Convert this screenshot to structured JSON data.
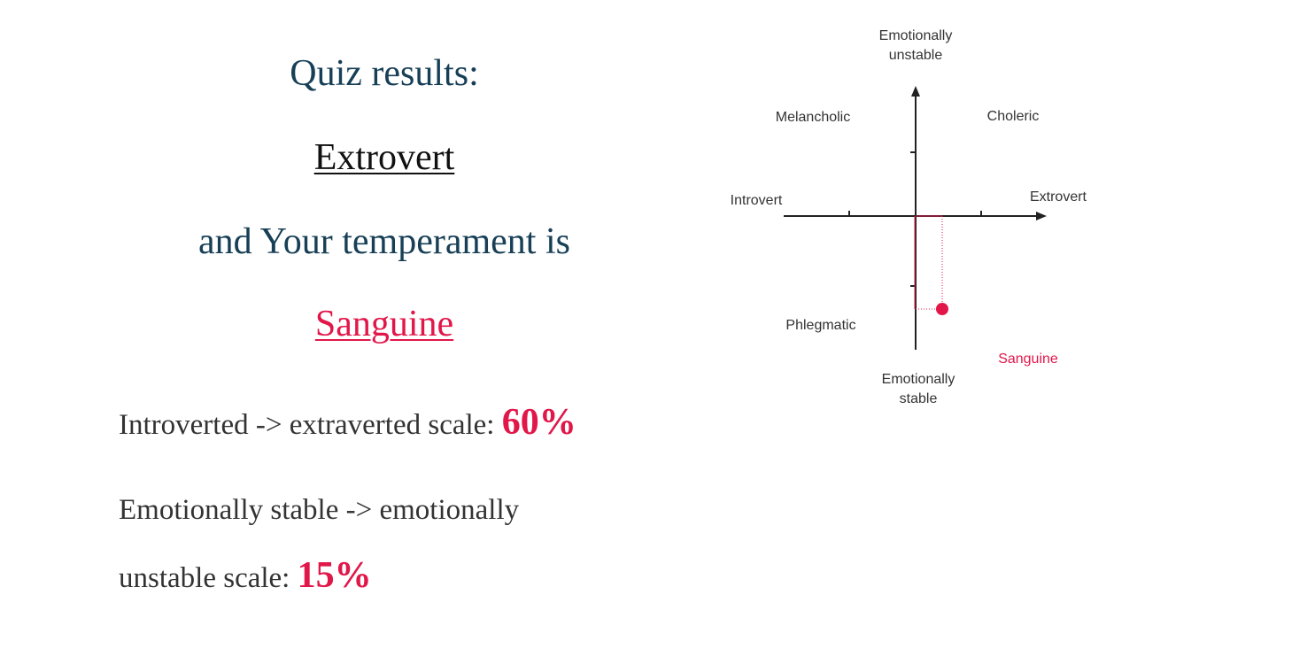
{
  "results": {
    "heading": "Quiz results:",
    "type": "Extrovert",
    "temperament_intro": "and Your temperament is",
    "temperament": "Sanguine",
    "intro_scale": {
      "label": "Introverted -> extraverted scale:",
      "value": "60%"
    },
    "stable_scale": {
      "line1": "Emotionally stable -> emotionally",
      "line2": "unstable scale:",
      "value": "15%"
    }
  },
  "diagram": {
    "top_label_1": "Emotionally",
    "top_label_2": "unstable",
    "bottom_label_1": "Emotionally",
    "bottom_label_2": "stable",
    "left_label": "Introvert",
    "right_label": "Extrovert",
    "quadrants": {
      "top_left": "Melancholic",
      "top_right": "Choleric",
      "bottom_left": "Phlegmatic"
    },
    "marker_label": "Sanguine",
    "marker": {
      "extraversion": 0.6,
      "instability": 0.15
    },
    "colors": {
      "accent": "#e1174a",
      "axis": "#222222",
      "heading": "#173f56"
    }
  }
}
